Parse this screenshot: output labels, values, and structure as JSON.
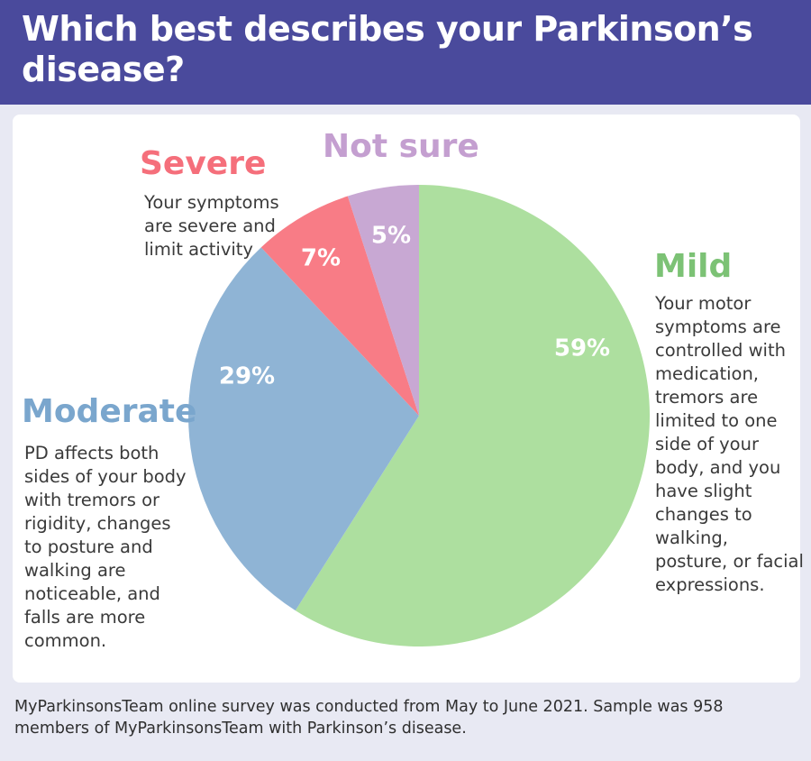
{
  "header": {
    "title": "Which best describes your Parkinson’s disease?"
  },
  "chart_data": {
    "type": "pie",
    "title": "Which best describes your Parkinson’s disease?",
    "slices": [
      {
        "label": "Mild",
        "value": 59,
        "value_label": "59%",
        "color": "#addf9f",
        "description": "Your motor symptoms are controlled with medication, tremors are limited to one side of your body, and you have slight changes to walking, posture, or facial expressions."
      },
      {
        "label": "Moderate",
        "value": 29,
        "value_label": "29%",
        "color": "#8fb4d5",
        "description": "PD affects both sides of your body with tremors or rigidity, changes to posture and walking are noticeable, and falls are more common."
      },
      {
        "label": "Severe",
        "value": 7,
        "value_label": "7%",
        "color": "#f87c86",
        "description": "Your symptoms are severe and limit activity"
      },
      {
        "label": "Not sure",
        "value": 5,
        "value_label": "5%",
        "color": "#c8a8d3",
        "description": ""
      }
    ],
    "label_colors": {
      "Mild": "#7cc275",
      "Moderate": "#7aa6cd",
      "Severe": "#f56f7b",
      "Not sure": "#c49fd0"
    },
    "start": "12 o'clock",
    "direction": "clockwise"
  },
  "footer": {
    "note": "MyParkinsonsTeam online survey was conducted from May to June 2021. Sample was 958 members of MyParkinsonsTeam with Parkinson’s disease."
  }
}
